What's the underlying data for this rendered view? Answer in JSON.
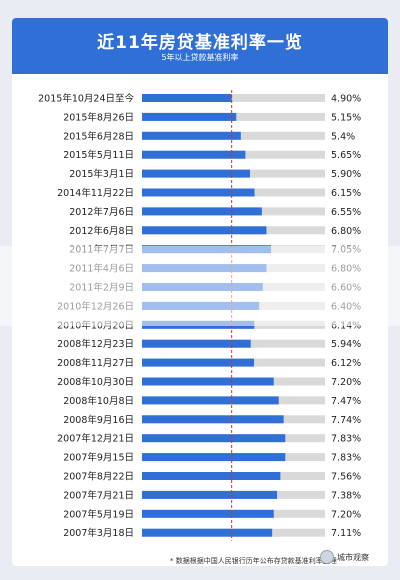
{
  "header": {
    "title": "近11年房贷基准利率一览",
    "subtitle": "5年以上贷款基准利率"
  },
  "chart_data": {
    "type": "bar",
    "orientation": "horizontal",
    "title": "近11年房贷基准利率一览",
    "subtitle": "5年以上贷款基准利率",
    "xlim": [
      0,
      10
    ],
    "reference_line": 4.9,
    "categories": [
      "2015年10月24日至今",
      "2015年8月26日",
      "2015年6月28日",
      "2015年5月11日",
      "2015年3月1日",
      "2014年11月22日",
      "2012年7月6日",
      "2012年6月8日",
      "2011年7月7日",
      "2011年4月6日",
      "2011年2月9日",
      "2010年12月26日",
      "2010年10月20日",
      "2008年12月23日",
      "2008年11月27日",
      "2008年10月30日",
      "2008年10月8日",
      "2008年9月16日",
      "2007年12月21日",
      "2007年9月15日",
      "2007年8月22日",
      "2007年7月21日",
      "2007年5月19日",
      "2007年3月18日"
    ],
    "values": [
      4.9,
      5.15,
      5.4,
      5.65,
      5.9,
      6.15,
      6.55,
      6.8,
      7.05,
      6.8,
      6.6,
      6.4,
      6.14,
      5.94,
      6.12,
      7.2,
      7.47,
      7.74,
      7.83,
      7.83,
      7.56,
      7.38,
      7.2,
      7.11
    ],
    "labels": [
      "4.90%",
      "5.15%",
      "5.4%",
      "5.65%",
      "5.90%",
      "6.15%",
      "6.55%",
      "6.80%",
      "7.05%",
      "6.80%",
      "6.60%",
      "6.40%",
      "6.14%",
      "5.94%",
      "6.12%",
      "7.20%",
      "7.47%",
      "7.74%",
      "7.83%",
      "7.83%",
      "7.56%",
      "7.38%",
      "7.20%",
      "7.11%"
    ],
    "colors": {
      "bar": "#2f6fd6",
      "track": "#d9d9d9",
      "reference": "#c0392b"
    }
  },
  "footer": {
    "note": "* 数据根据中国人民银行历年公布存贷款基准利率整理",
    "source": "城市观察"
  }
}
